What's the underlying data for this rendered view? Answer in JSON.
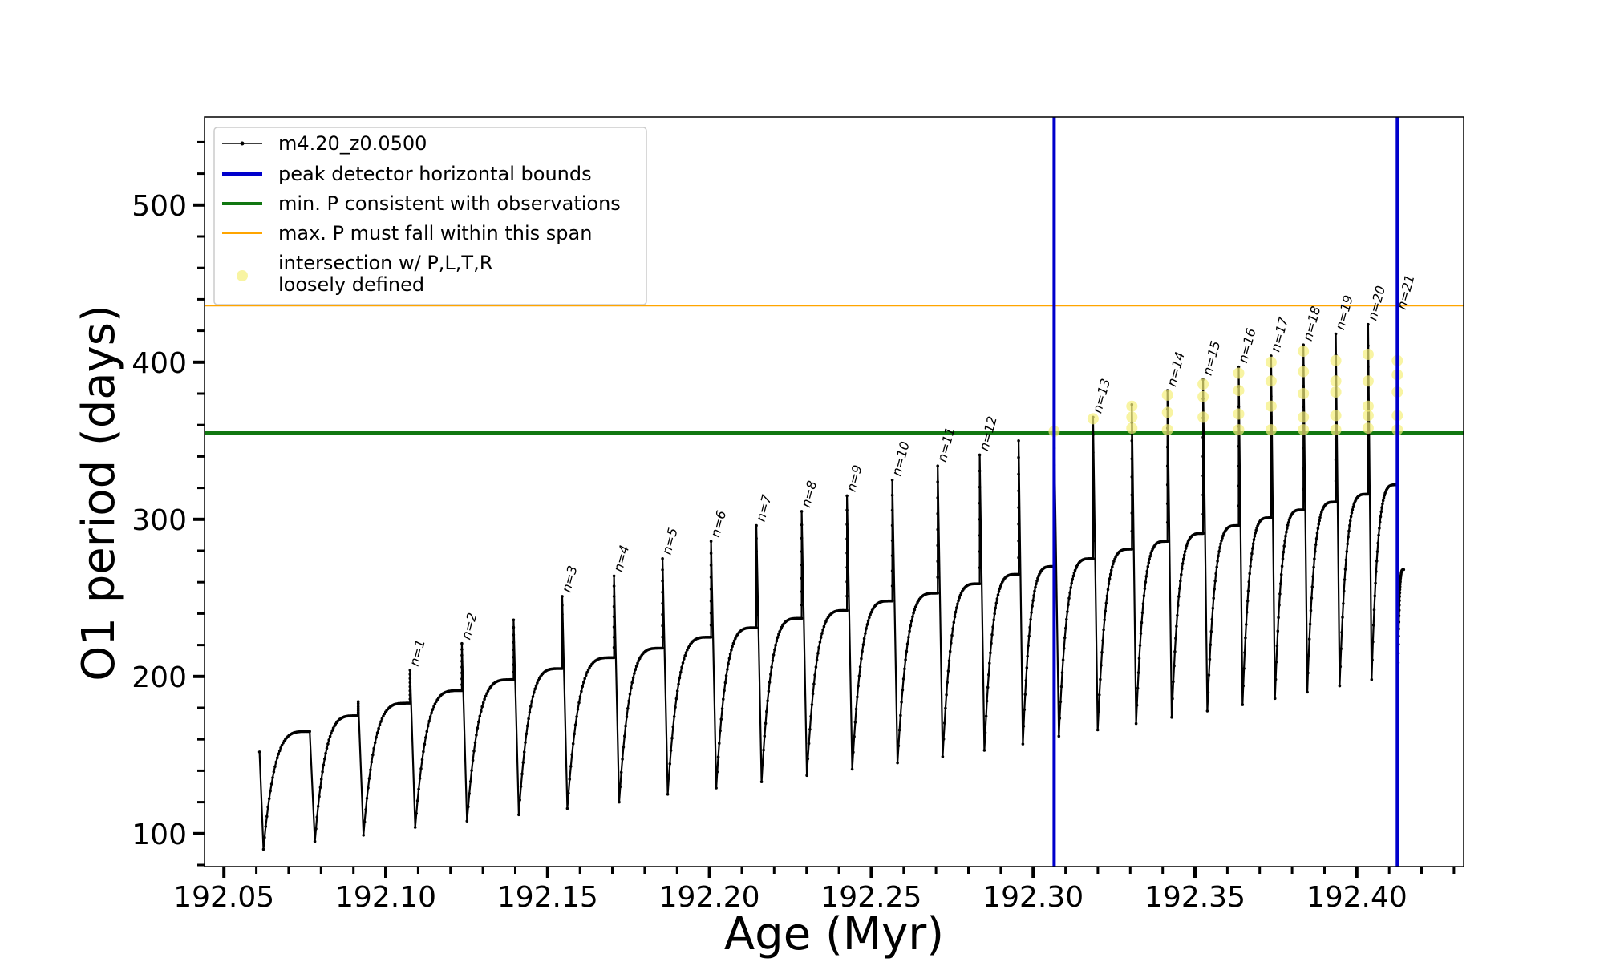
{
  "chart_data": {
    "type": "line",
    "title": "",
    "xlabel": "Age (Myr)",
    "ylabel": "O1 period (days)",
    "xlim": [
      192.044,
      192.433
    ],
    "ylim": [
      79,
      556
    ],
    "x_ticks": [
      192.05,
      192.1,
      192.15,
      192.2,
      192.25,
      192.3,
      192.35,
      192.4
    ],
    "x_tick_labels": [
      "192.05",
      "192.10",
      "192.15",
      "192.20",
      "192.25",
      "192.30",
      "192.35",
      "192.40"
    ],
    "y_ticks": [
      100,
      200,
      300,
      400,
      500
    ],
    "y_tick_labels": [
      "100",
      "200",
      "300",
      "400",
      "500"
    ],
    "legend_position": "upper-left",
    "legend": [
      {
        "label": "m4.20_z0.0500",
        "style": "line-dot",
        "color": "#000000"
      },
      {
        "label": "peak detector horizontal bounds",
        "style": "line",
        "color": "#0000cc"
      },
      {
        "label": "min. P consistent with observations",
        "style": "line",
        "color": "#117711"
      },
      {
        "label": "max. P must fall within this span",
        "style": "line",
        "color": "#ffa500"
      },
      {
        "label_lines": [
          "intersection w/ P,L,T,R",
          "loosely defined"
        ],
        "style": "marker",
        "color": "#f5f07a"
      }
    ],
    "vertical_lines": {
      "name": "peak detector horizontal bounds",
      "x": [
        192.3065,
        192.4125
      ],
      "color": "#0000cc"
    },
    "horizontal_lines": [
      {
        "name": "min. P consistent with observations",
        "y": 355,
        "color": "#117711"
      },
      {
        "name": "max. P must fall within this span",
        "y": 436,
        "color": "#ffa500"
      }
    ],
    "series": {
      "name": "m4.20_z0.0500",
      "color": "#000000",
      "start": {
        "x": 192.061,
        "y": 152
      },
      "end_x": 192.4145,
      "end_y": 268,
      "cycles": [
        {
          "x": 192.0765,
          "pre": 165,
          "spike": 165,
          "min": 95
        },
        {
          "x": 192.0915,
          "pre": 175,
          "spike": 184,
          "min": 99
        },
        {
          "x": 192.1075,
          "pre": 183,
          "spike": 204,
          "min": 104,
          "n": "n=1"
        },
        {
          "x": 192.1235,
          "pre": 191,
          "spike": 221,
          "min": 108,
          "n": "n=2"
        },
        {
          "x": 192.1395,
          "pre": 198,
          "spike": 236,
          "min": 112
        },
        {
          "x": 192.1545,
          "pre": 205,
          "spike": 251,
          "min": 116,
          "n": "n=3"
        },
        {
          "x": 192.1705,
          "pre": 212,
          "spike": 264,
          "min": 120,
          "n": "n=4"
        },
        {
          "x": 192.1855,
          "pre": 218,
          "spike": 275,
          "min": 125,
          "n": "n=5"
        },
        {
          "x": 192.2005,
          "pre": 225,
          "spike": 286,
          "min": 129,
          "n": "n=6"
        },
        {
          "x": 192.2145,
          "pre": 231,
          "spike": 296,
          "min": 133,
          "n": "n=7"
        },
        {
          "x": 192.2285,
          "pre": 237,
          "spike": 305,
          "min": 137,
          "n": "n=8"
        },
        {
          "x": 192.2425,
          "pre": 242,
          "spike": 315,
          "min": 141,
          "n": "n=9"
        },
        {
          "x": 192.2565,
          "pre": 248,
          "spike": 325,
          "min": 145,
          "n": "n=10"
        },
        {
          "x": 192.2705,
          "pre": 253,
          "spike": 334,
          "min": 149,
          "n": "n=11"
        },
        {
          "x": 192.2835,
          "pre": 259,
          "spike": 341,
          "min": 153,
          "n": "n=12"
        },
        {
          "x": 192.2955,
          "pre": 265,
          "spike": 350,
          "min": 157
        },
        {
          "x": 192.3065,
          "pre": 270,
          "spike": 356,
          "min": 162
        },
        {
          "x": 192.3185,
          "pre": 275,
          "spike": 365,
          "min": 166,
          "n": "n=13"
        },
        {
          "x": 192.3305,
          "pre": 281,
          "spike": 373,
          "min": 170
        },
        {
          "x": 192.3415,
          "pre": 286,
          "spike": 382,
          "min": 174,
          "n": "n=14"
        },
        {
          "x": 192.3525,
          "pre": 291,
          "spike": 389,
          "min": 178,
          "n": "n=15"
        },
        {
          "x": 192.3635,
          "pre": 296,
          "spike": 397,
          "min": 182,
          "n": "n=16"
        },
        {
          "x": 192.3735,
          "pre": 301,
          "spike": 404,
          "min": 186,
          "n": "n=17"
        },
        {
          "x": 192.3835,
          "pre": 306,
          "spike": 411,
          "min": 190,
          "n": "n=18"
        },
        {
          "x": 192.3935,
          "pre": 311,
          "spike": 418,
          "min": 194,
          "n": "n=19"
        },
        {
          "x": 192.4035,
          "pre": 316,
          "spike": 424,
          "min": 198,
          "n": "n=20"
        },
        {
          "x": 192.4125,
          "pre": 322,
          "spike": 431,
          "min": 202,
          "n": "n=21"
        }
      ]
    },
    "intersections": [
      {
        "x": 192.3065,
        "y": [
          356
        ]
      },
      {
        "x": 192.3185,
        "y": [
          364
        ]
      },
      {
        "x": 192.3305,
        "y": [
          358,
          365,
          372
        ]
      },
      {
        "x": 192.3415,
        "y": [
          357,
          368,
          379
        ]
      },
      {
        "x": 192.3525,
        "y": [
          365,
          378,
          386
        ]
      },
      {
        "x": 192.3635,
        "y": [
          357,
          367,
          382,
          393
        ]
      },
      {
        "x": 192.3735,
        "y": [
          357,
          372,
          388,
          400
        ]
      },
      {
        "x": 192.3835,
        "y": [
          357,
          365,
          380,
          394,
          407
        ]
      },
      {
        "x": 192.3935,
        "y": [
          357,
          366,
          381,
          388,
          401
        ]
      },
      {
        "x": 192.4035,
        "y": [
          358,
          366,
          372,
          388,
          405
        ]
      },
      {
        "x": 192.4125,
        "y": [
          357,
          366,
          381,
          392,
          401
        ]
      }
    ]
  }
}
